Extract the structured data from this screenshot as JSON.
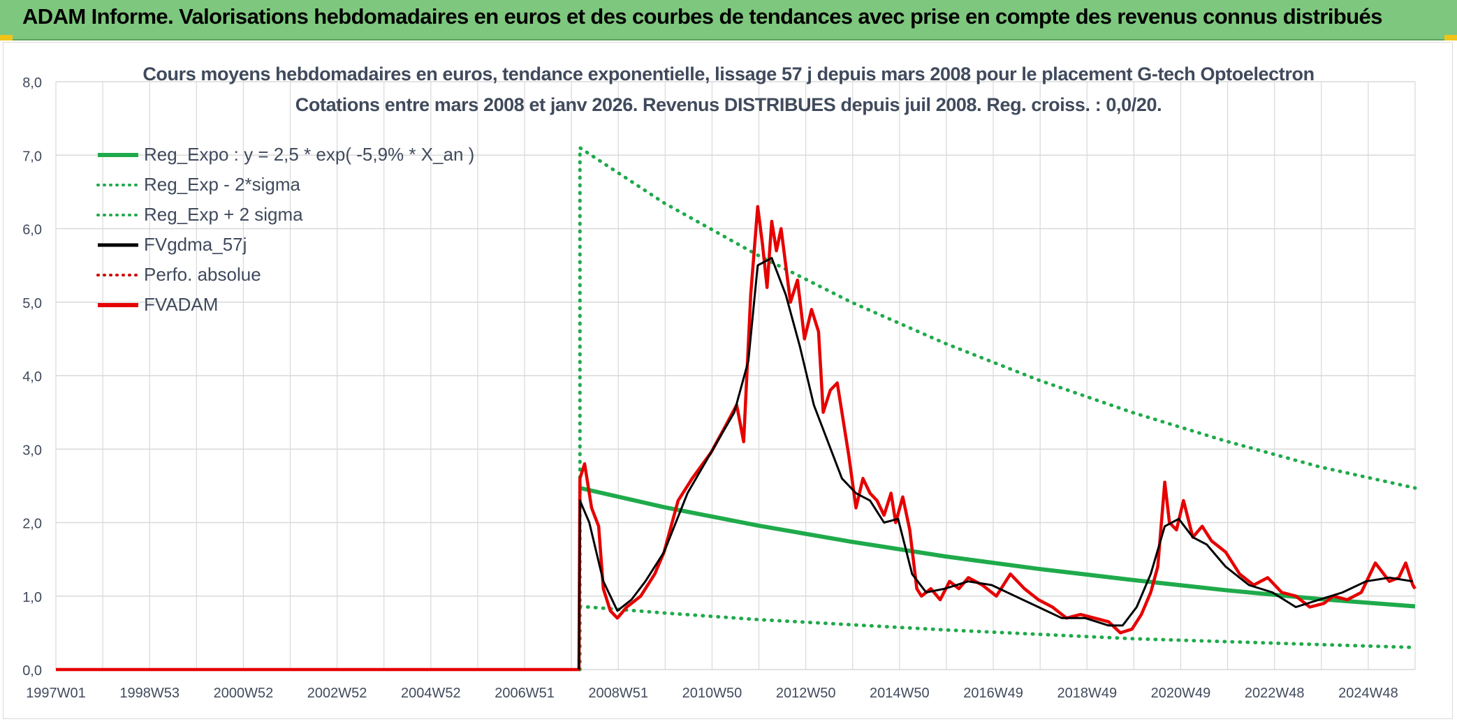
{
  "header": {
    "banner_title": "ADAM Informe. Valorisations hebdomadaires en euros et des courbes de tendances avec prise en compte des revenus connus distribués"
  },
  "colors": {
    "banner_bg": "#7ec77e",
    "reg_expo": "#1faa4b",
    "fv_gdma": "#000000",
    "perf_abs": "#d00000",
    "fvadam": "#e60000",
    "grid": "#d9d9d9",
    "text": "#404a5c"
  },
  "chart_data": {
    "type": "line",
    "title_line1": "Cours moyens hebdomadaires en euros, tendance exponentielle, lissage 57 j depuis mars 2008 pour le placement G-tech Optoelectron",
    "title_line2": "Cotations entre mars 2008 et janv 2026. Revenus DISTRIBUES depuis juil 2008. Reg. croiss. : 0,0/20.",
    "x_tick_labels": [
      "1997W01",
      "1998W53",
      "2000W52",
      "2002W52",
      "2004W52",
      "2006W51",
      "2008W51",
      "2010W50",
      "2012W50",
      "2014W50",
      "2016W49",
      "2018W49",
      "2020W49",
      "2022W48",
      "2024W48"
    ],
    "x_range": [
      1997.0,
      2026.05
    ],
    "y_tick_labels": [
      "0,0",
      "1,0",
      "2,0",
      "3,0",
      "4,0",
      "5,0",
      "6,0",
      "7,0",
      "8,0"
    ],
    "ylim": [
      0,
      8
    ],
    "grid": true,
    "legend_position": "top-left",
    "legend": [
      {
        "key": "reg_expo",
        "label": "Reg_Expo : y = 2,5 * exp( -5,9% *  X_an )",
        "style": "solid-thick",
        "color": "#1faa4b"
      },
      {
        "key": "reg_lower",
        "label": "Reg_Exp - 2*sigma",
        "style": "dotted",
        "color": "#1faa4b"
      },
      {
        "key": "reg_upper",
        "label": "Reg_Exp + 2 sigma",
        "style": "dotted",
        "color": "#1faa4b"
      },
      {
        "key": "fv_gdma",
        "label": "FVgdma_57j",
        "style": "solid",
        "color": "#000000"
      },
      {
        "key": "perf_abs",
        "label": "Perfo. absolue",
        "style": "dotted",
        "color": "#d00000"
      },
      {
        "key": "fvadam",
        "label": "FVADAM",
        "style": "solid-thick",
        "color": "#e60000"
      }
    ],
    "series": [
      {
        "name": "Reg_Expo : y = 2,5 * exp( -5,9% *  X_an )",
        "x": [
          2008.2,
          2010,
          2012,
          2014,
          2016,
          2018,
          2020,
          2022,
          2024,
          2026.05
        ],
        "values": [
          2.47,
          2.21,
          1.96,
          1.74,
          1.54,
          1.37,
          1.22,
          1.08,
          0.96,
          0.86
        ]
      },
      {
        "name": "Reg_Exp - 2*sigma",
        "x": [
          2008.2,
          2010,
          2012,
          2014,
          2016,
          2018,
          2020,
          2022,
          2024,
          2026.05
        ],
        "values": [
          0.86,
          0.77,
          0.68,
          0.61,
          0.54,
          0.48,
          0.42,
          0.38,
          0.34,
          0.3
        ]
      },
      {
        "name": "Reg_Exp + 2 sigma",
        "x": [
          2008.2,
          2008.2,
          2010,
          2012,
          2014,
          2016,
          2018,
          2020,
          2022,
          2024,
          2026.05
        ],
        "values": [
          0.0,
          7.1,
          6.35,
          5.64,
          5.0,
          4.44,
          3.94,
          3.5,
          3.11,
          2.76,
          2.47
        ]
      },
      {
        "name": "FVgdma_57j",
        "x": [
          2008.18,
          2008.2,
          2008.4,
          2008.7,
          2009.0,
          2009.3,
          2009.6,
          2010.0,
          2010.5,
          2011.0,
          2011.5,
          2011.8,
          2012.0,
          2012.3,
          2012.6,
          2012.9,
          2013.2,
          2013.5,
          2013.8,
          2014.1,
          2014.4,
          2014.7,
          2015.0,
          2015.3,
          2015.6,
          2016.0,
          2016.5,
          2017.0,
          2017.5,
          2018.0,
          2018.5,
          2019.0,
          2019.5,
          2019.8,
          2020.1,
          2020.4,
          2020.7,
          2021.0,
          2021.3,
          2021.6,
          2022.0,
          2022.5,
          2023.0,
          2023.5,
          2024.0,
          2024.5,
          2025.0,
          2025.5,
          2026.0
        ],
        "values": [
          0.0,
          2.3,
          2.0,
          1.2,
          0.8,
          0.95,
          1.2,
          1.6,
          2.4,
          2.95,
          3.5,
          4.2,
          5.5,
          5.6,
          5.1,
          4.4,
          3.6,
          3.1,
          2.6,
          2.4,
          2.3,
          2.0,
          2.05,
          1.3,
          1.05,
          1.1,
          1.2,
          1.15,
          1.0,
          0.85,
          0.7,
          0.7,
          0.6,
          0.6,
          0.85,
          1.3,
          1.95,
          2.05,
          1.8,
          1.7,
          1.4,
          1.15,
          1.05,
          0.85,
          0.95,
          1.05,
          1.2,
          1.25,
          1.2
        ]
      },
      {
        "name": "FVADAM",
        "x": [
          1997.0,
          2008.18,
          2008.2,
          2008.3,
          2008.45,
          2008.6,
          2008.7,
          2008.85,
          2009.0,
          2009.2,
          2009.5,
          2009.8,
          2010.0,
          2010.3,
          2010.6,
          2011.0,
          2011.3,
          2011.55,
          2011.7,
          2011.85,
          2012.0,
          2012.1,
          2012.2,
          2012.3,
          2012.4,
          2012.5,
          2012.6,
          2012.7,
          2012.85,
          2013.0,
          2013.15,
          2013.3,
          2013.4,
          2013.55,
          2013.7,
          2013.8,
          2013.95,
          2014.1,
          2014.25,
          2014.4,
          2014.55,
          2014.7,
          2014.85,
          2014.95,
          2015.1,
          2015.25,
          2015.4,
          2015.5,
          2015.7,
          2015.9,
          2016.1,
          2016.3,
          2016.5,
          2016.8,
          2017.1,
          2017.4,
          2017.7,
          2018.0,
          2018.3,
          2018.6,
          2018.9,
          2019.2,
          2019.5,
          2019.75,
          2020.0,
          2020.2,
          2020.4,
          2020.55,
          2020.7,
          2020.8,
          2020.95,
          2021.1,
          2021.3,
          2021.5,
          2021.7,
          2022.0,
          2022.3,
          2022.6,
          2022.9,
          2023.2,
          2023.5,
          2023.8,
          2024.1,
          2024.3,
          2024.6,
          2024.9,
          2025.2,
          2025.5,
          2025.7,
          2025.85,
          2026.0,
          2026.05
        ],
        "values": [
          0.0,
          0.0,
          2.6,
          2.8,
          2.2,
          1.95,
          1.1,
          0.8,
          0.7,
          0.85,
          1.0,
          1.3,
          1.6,
          2.3,
          2.6,
          2.95,
          3.3,
          3.6,
          3.1,
          5.1,
          6.3,
          5.8,
          5.2,
          6.1,
          5.7,
          6.0,
          5.5,
          5.0,
          5.3,
          4.5,
          4.9,
          4.6,
          3.5,
          3.8,
          3.9,
          3.5,
          2.9,
          2.2,
          2.6,
          2.4,
          2.3,
          2.1,
          2.4,
          2.0,
          2.35,
          1.9,
          1.1,
          1.0,
          1.1,
          0.95,
          1.2,
          1.1,
          1.25,
          1.15,
          1.0,
          1.3,
          1.1,
          0.95,
          0.85,
          0.7,
          0.75,
          0.7,
          0.65,
          0.5,
          0.55,
          0.75,
          1.05,
          1.4,
          2.55,
          2.0,
          1.9,
          2.3,
          1.8,
          1.95,
          1.75,
          1.6,
          1.3,
          1.15,
          1.25,
          1.05,
          1.0,
          0.85,
          0.9,
          1.0,
          0.95,
          1.05,
          1.45,
          1.2,
          1.25,
          1.45,
          1.15,
          1.1
        ]
      }
    ]
  }
}
